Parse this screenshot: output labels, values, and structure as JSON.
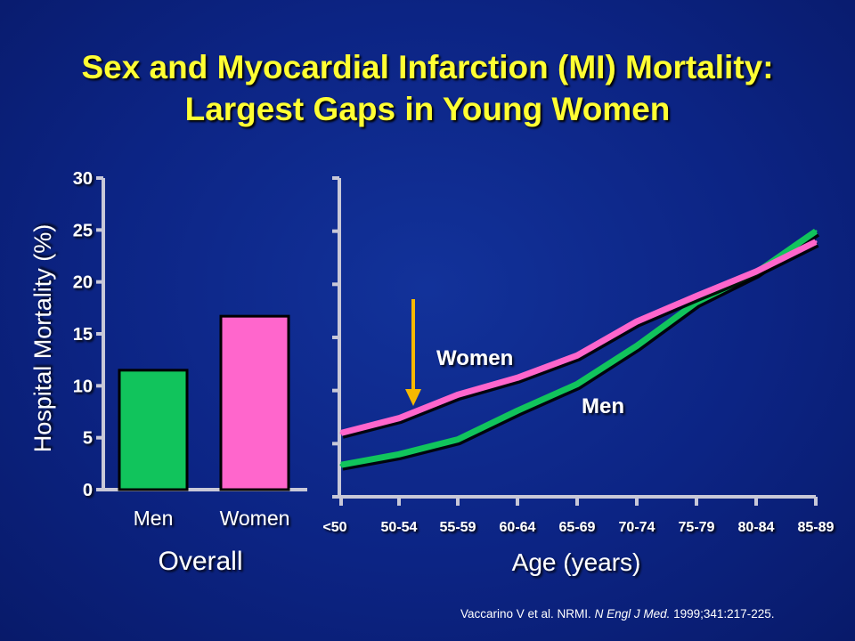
{
  "title_line1": "Sex and Myocardial Infarction (MI) Mortality:",
  "title_line2": "Largest Gaps in Young Women",
  "colors": {
    "men": "#11c45c",
    "women": "#ff66cc",
    "arrow": "#f5b800",
    "title": "#ffff33"
  },
  "chart_data": [
    {
      "type": "bar",
      "ylabel": "Hospital Mortality (%)",
      "xlabel": "Overall",
      "ylim": [
        0,
        30
      ],
      "yticks": [
        "0",
        "5",
        "10",
        "15",
        "20",
        "25",
        "30"
      ],
      "categories": [
        "Men",
        "Women"
      ],
      "values": [
        11.5,
        16.7
      ]
    },
    {
      "type": "line",
      "xlabel": "Age (years)",
      "ylim": [
        0,
        30
      ],
      "categories": [
        "<50",
        "50-54",
        "55-59",
        "60-64",
        "65-69",
        "70-74",
        "75-79",
        "80-84",
        "85-89"
      ],
      "series": [
        {
          "name": "Women",
          "values": [
            6.0,
            7.4,
            9.6,
            11.2,
            13.3,
            16.5,
            18.9,
            21.2,
            24.0
          ]
        },
        {
          "name": "Men",
          "values": [
            3.0,
            4.0,
            5.4,
            8.1,
            10.6,
            14.2,
            18.3,
            21.1,
            25.0
          ]
        }
      ],
      "annotation": "arrow pointing down at the 50-54 age group"
    }
  ],
  "citation": {
    "authors": "Vaccarino V et al. NRMI. ",
    "journal": "N Engl J Med.",
    "details": " 1999;341:217-225."
  }
}
